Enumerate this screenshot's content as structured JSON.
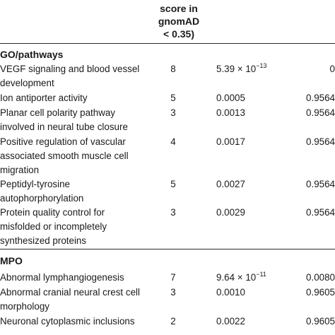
{
  "header": {
    "col_line_1": "score in",
    "col_line_2": "gnomAD",
    "col_line_3": "< 0.35)"
  },
  "sections": [
    {
      "title": "GO/pathways",
      "rows": [
        {
          "term": "VEGF signaling and blood vessel development",
          "count": "8",
          "pval_base": "5.39 × 10",
          "pval_exp": "−13",
          "fdr": "0"
        },
        {
          "term": "Ion antiporter activity",
          "count": "5",
          "pval_base": "0.0005",
          "pval_exp": "",
          "fdr": "0.9564"
        },
        {
          "term": "Planar cell polarity pathway involved in neural tube closure",
          "count": "3",
          "pval_base": "0.0013",
          "pval_exp": "",
          "fdr": "0.9564"
        },
        {
          "term": "Positive regulation of vascular associated smooth muscle cell migration",
          "count": "4",
          "pval_base": "0.0017",
          "pval_exp": "",
          "fdr": "0.9564"
        },
        {
          "term": "Peptidyl-tyrosine autophorphorylation",
          "count": "5",
          "pval_base": "0.0027",
          "pval_exp": "",
          "fdr": "0.9564"
        },
        {
          "term": "Protein quality control for misfolded or incompletely synthesized proteins",
          "count": "3",
          "pval_base": "0.0029",
          "pval_exp": "",
          "fdr": "0.9564"
        }
      ]
    },
    {
      "title": "MPO",
      "rows": [
        {
          "term": "Abnormal lymphangiogenesis",
          "count": "7",
          "pval_base": "9.64 × 10",
          "pval_exp": "−11",
          "fdr": "0.0080"
        },
        {
          "term": "Abnormal cranial neural crest cell morphology",
          "count": "3",
          "pval_base": "0.0010",
          "pval_exp": "",
          "fdr": "0.9605"
        },
        {
          "term": "Neuronal cytoplasmic inclusions",
          "count": "2",
          "pval_base": "0.0022",
          "pval_exp": "",
          "fdr": "0.9605"
        }
      ]
    }
  ]
}
